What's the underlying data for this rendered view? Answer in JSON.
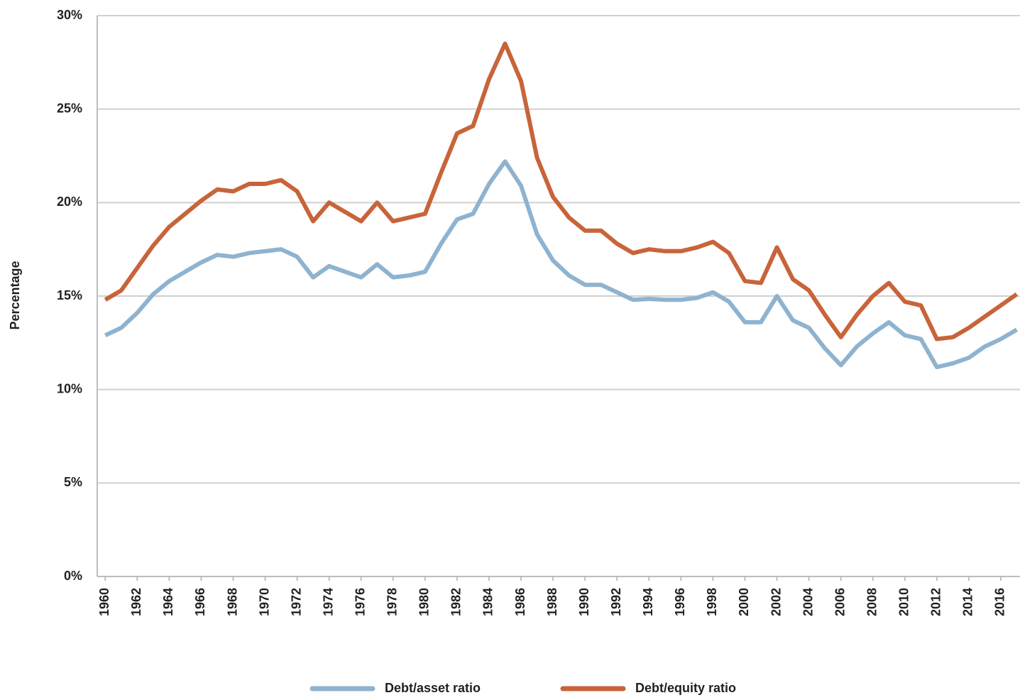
{
  "chart_data": {
    "type": "line",
    "y_label": "Percentage",
    "x": [
      1960,
      1961,
      1962,
      1963,
      1964,
      1965,
      1966,
      1967,
      1968,
      1969,
      1970,
      1971,
      1972,
      1973,
      1974,
      1975,
      1976,
      1977,
      1978,
      1979,
      1980,
      1981,
      1982,
      1983,
      1984,
      1985,
      1986,
      1987,
      1988,
      1989,
      1990,
      1991,
      1992,
      1993,
      1994,
      1995,
      1996,
      1997,
      1998,
      1999,
      2000,
      2001,
      2002,
      2003,
      2004,
      2005,
      2006,
      2007,
      2008,
      2009,
      2010,
      2011,
      2012,
      2013,
      2014,
      2015,
      2016,
      2017
    ],
    "series": [
      {
        "name": "Debt/asset ratio",
        "color": "#8fb3cf",
        "values": [
          12.9,
          13.3,
          14.1,
          15.1,
          15.8,
          16.3,
          16.8,
          17.2,
          17.1,
          17.3,
          17.4,
          17.5,
          17.1,
          16.0,
          16.6,
          16.3,
          16.0,
          16.7,
          16.0,
          16.1,
          16.3,
          17.8,
          19.1,
          19.4,
          21.0,
          22.2,
          20.9,
          18.3,
          16.9,
          16.1,
          15.6,
          15.6,
          15.2,
          14.8,
          14.85,
          14.8,
          14.8,
          14.9,
          15.2,
          14.7,
          13.6,
          13.6,
          15.0,
          13.7,
          13.3,
          12.2,
          11.3,
          12.3,
          13.0,
          13.6,
          12.9,
          12.7,
          11.2,
          11.4,
          11.7,
          12.3,
          12.7,
          13.2
        ]
      },
      {
        "name": "Debt/equity ratio",
        "color": "#c8643a",
        "values": [
          14.8,
          15.3,
          16.5,
          17.7,
          18.7,
          19.4,
          20.1,
          20.7,
          20.6,
          21.0,
          21.0,
          21.2,
          20.6,
          19.0,
          20.0,
          19.5,
          19.0,
          20.0,
          19.0,
          19.2,
          19.4,
          21.6,
          23.7,
          24.1,
          26.6,
          28.5,
          26.5,
          22.4,
          20.3,
          19.2,
          18.5,
          18.5,
          17.8,
          17.3,
          17.5,
          17.4,
          17.4,
          17.6,
          17.9,
          17.3,
          15.8,
          15.7,
          17.6,
          15.9,
          15.3,
          14.0,
          12.8,
          14.0,
          15.0,
          15.7,
          14.7,
          14.5,
          12.7,
          12.8,
          13.3,
          13.9,
          14.5,
          15.1
        ]
      }
    ],
    "xlim": [
      1959.5,
      2017.2
    ],
    "xticks": [
      1960,
      1962,
      1964,
      1966,
      1968,
      1970,
      1972,
      1974,
      1976,
      1978,
      1980,
      1982,
      1984,
      1986,
      1988,
      1990,
      1992,
      1994,
      1996,
      1998,
      2000,
      2002,
      2004,
      2006,
      2008,
      2010,
      2012,
      2014,
      2016
    ],
    "ylim": [
      0,
      30
    ],
    "yticks": [
      {
        "value": 0,
        "label": "0%"
      },
      {
        "value": 5,
        "label": "5%"
      },
      {
        "value": 10,
        "label": "10%"
      },
      {
        "value": 15,
        "label": "15%"
      },
      {
        "value": 20,
        "label": "20%"
      },
      {
        "value": 25,
        "label": "25%"
      },
      {
        "value": 30,
        "label": "30%"
      }
    ],
    "grid": true,
    "legend": "bottom"
  }
}
